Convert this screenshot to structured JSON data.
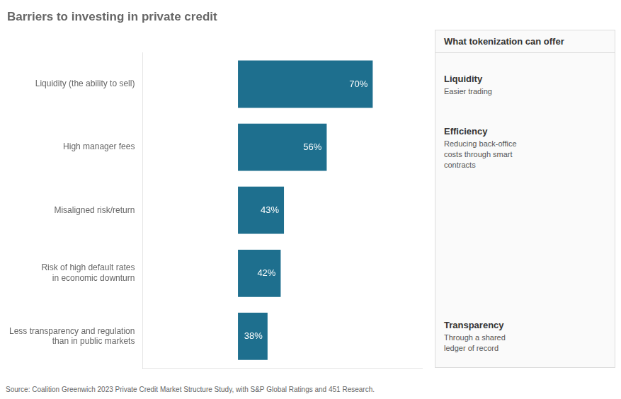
{
  "chart_data": {
    "type": "bar",
    "orientation": "horizontal",
    "title": "Barriers to investing in private credit",
    "categories": [
      "Liquidity (the ability to sell)",
      "High manager fees",
      "Misaligned risk/return",
      "Risk of high default rates\nin economic downturn",
      "Less transparency and regulation\nthan in public markets"
    ],
    "values": [
      70,
      56,
      43,
      42,
      38
    ],
    "value_labels": [
      "70%",
      "56%",
      "43%",
      "42%",
      "38%"
    ],
    "data_labels": true,
    "base": 29,
    "color": "#1e6f8e",
    "xlim": [
      0,
      85
    ],
    "tick_labels": "y",
    "grid": false,
    "annotations": [
      {
        "title": "What tokenization can offer",
        "items": [
          {
            "title": "Liquidity",
            "text": "Easier trading"
          },
          {
            "title": "Efficiency",
            "text": "Reducing back-office\ncosts through smart\ncontracts"
          },
          {
            "title": "Transparency",
            "text": "Through a shared\nledger of record"
          }
        ]
      },
      {
        "text": "Source: Coalition Greenwich 2023 Private Credit Market Structure Study, with S&P Global Ratings and 451 Research."
      }
    ]
  }
}
